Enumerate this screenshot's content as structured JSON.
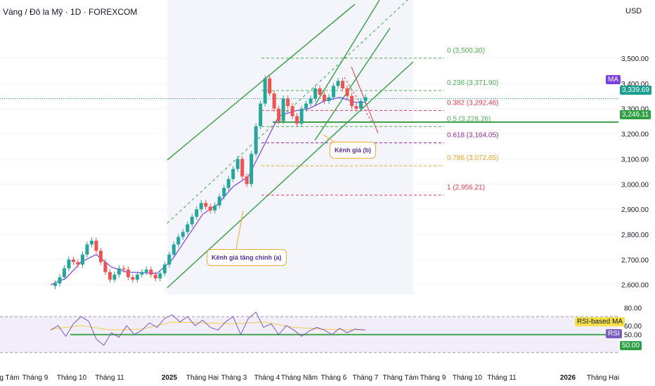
{
  "header": {
    "title": "Vàng / Đô la Mỹ · 1D · FOREXCOM",
    "currency": "USD"
  },
  "chart_data": {
    "type": "candlestick",
    "price_axis": {
      "ticks": [
        "3,500.00",
        "3,400.00",
        "3,300.00",
        "3,200.00",
        "3,100.00",
        "3,000.00",
        "2,900.00",
        "2,800.00",
        "2,700.00",
        "2,600.00"
      ],
      "ylim": [
        2560,
        3620
      ]
    },
    "current_price": "3,339.69",
    "ma_tag": "MA",
    "level_tag": "3,246.11",
    "fib_levels": [
      {
        "ratio": "0",
        "price": 3500.3,
        "label": "0 (3,500.30)",
        "color": "#4caf50"
      },
      {
        "ratio": "0.236",
        "price": 3371.9,
        "label": "0.236 (3,371.90)",
        "color": "#4caf50"
      },
      {
        "ratio": "0.382",
        "price": 3292.46,
        "label": "0.382 (3,292.46)",
        "color": "#e53950"
      },
      {
        "ratio": "0.5",
        "price": 3228.26,
        "label": "0.5 (3,228.26)",
        "color": "#4caf50"
      },
      {
        "ratio": "0.618",
        "price": 3164.05,
        "label": "0.618 (3,164.05)",
        "color": "#9c27b0"
      },
      {
        "ratio": "0.786",
        "price": 3072.65,
        "label": "0.786 (3,072.65)",
        "color": "#f5a623"
      },
      {
        "ratio": "1",
        "price": 2956.21,
        "label": "1 (2,956.21)",
        "color": "#e53950"
      }
    ],
    "annotations": [
      {
        "text": "Kênh giá (b)"
      },
      {
        "text": "Kênh giá tăng chính (a)"
      }
    ],
    "rsi": {
      "ticks": [
        "80.00",
        "60.00",
        "50.00"
      ],
      "ylim": [
        20,
        85
      ],
      "upper": 70,
      "lower": 30,
      "ma_label": "RSI-based MA",
      "rsi_label": "RSI",
      "level": 50,
      "level_label": "50.00"
    },
    "time_axis": [
      "Tháng Tám",
      "Tháng 9",
      "Tháng 10",
      "Tháng 11",
      "2025",
      "Tháng Hai",
      "Tháng 3",
      "Tháng 4",
      "Tháng Năm",
      "Tháng 6",
      "Tháng 7",
      "Tháng Tám",
      "Tháng 9",
      "Tháng 10",
      "Tháng 11",
      "2026",
      "Tháng Hai"
    ],
    "price_path": [
      [
        0,
        2595
      ],
      [
        3,
        2605
      ],
      [
        6,
        2630
      ],
      [
        9,
        2665
      ],
      [
        12,
        2700
      ],
      [
        15,
        2690
      ],
      [
        18,
        2680
      ],
      [
        21,
        2720
      ],
      [
        24,
        2760
      ],
      [
        27,
        2775
      ],
      [
        30,
        2735
      ],
      [
        33,
        2690
      ],
      [
        36,
        2650
      ],
      [
        39,
        2620
      ],
      [
        42,
        2640
      ],
      [
        45,
        2665
      ],
      [
        48,
        2660
      ],
      [
        51,
        2630
      ],
      [
        54,
        2620
      ],
      [
        57,
        2640
      ],
      [
        60,
        2650
      ],
      [
        63,
        2660
      ],
      [
        66,
        2640
      ],
      [
        69,
        2625
      ],
      [
        72,
        2645
      ],
      [
        75,
        2680
      ],
      [
        78,
        2720
      ],
      [
        81,
        2760
      ],
      [
        84,
        2790
      ],
      [
        87,
        2810
      ],
      [
        90,
        2840
      ],
      [
        93,
        2870
      ],
      [
        96,
        2900
      ],
      [
        99,
        2925
      ],
      [
        102,
        2910
      ],
      [
        105,
        2895
      ],
      [
        108,
        2915
      ],
      [
        111,
        2950
      ],
      [
        114,
        2985
      ],
      [
        117,
        3020
      ],
      [
        120,
        3060
      ],
      [
        123,
        3100
      ],
      [
        126,
        3030
      ],
      [
        129,
        3000
      ],
      [
        132,
        3120
      ],
      [
        135,
        3230
      ],
      [
        138,
        3320
      ],
      [
        141,
        3420
      ],
      [
        144,
        3360
      ],
      [
        147,
        3300
      ],
      [
        150,
        3250
      ],
      [
        153,
        3340
      ],
      [
        156,
        3310
      ],
      [
        159,
        3270
      ],
      [
        162,
        3240
      ],
      [
        165,
        3300
      ],
      [
        168,
        3320
      ],
      [
        171,
        3340
      ],
      [
        174,
        3380
      ],
      [
        177,
        3355
      ],
      [
        180,
        3330
      ],
      [
        183,
        3345
      ],
      [
        186,
        3390
      ],
      [
        189,
        3410
      ],
      [
        192,
        3380
      ],
      [
        195,
        3350
      ],
      [
        198,
        3310
      ],
      [
        201,
        3300
      ],
      [
        204,
        3330
      ],
      [
        207,
        3345
      ]
    ],
    "ma_path": [
      [
        0,
        2600
      ],
      [
        10,
        2625
      ],
      [
        20,
        2690
      ],
      [
        30,
        2720
      ],
      [
        40,
        2670
      ],
      [
        50,
        2650
      ],
      [
        60,
        2648
      ],
      [
        70,
        2645
      ],
      [
        80,
        2700
      ],
      [
        90,
        2790
      ],
      [
        100,
        2880
      ],
      [
        110,
        2920
      ],
      [
        120,
        2990
      ],
      [
        130,
        3030
      ],
      [
        140,
        3150
      ],
      [
        150,
        3270
      ],
      [
        160,
        3290
      ],
      [
        170,
        3300
      ],
      [
        180,
        3330
      ],
      [
        190,
        3345
      ],
      [
        200,
        3325
      ],
      [
        207,
        3325
      ]
    ],
    "rsi_path": [
      [
        0,
        55
      ],
      [
        5,
        60
      ],
      [
        10,
        48
      ],
      [
        15,
        62
      ],
      [
        20,
        70
      ],
      [
        25,
        65
      ],
      [
        30,
        45
      ],
      [
        35,
        38
      ],
      [
        40,
        52
      ],
      [
        45,
        47
      ],
      [
        50,
        60
      ],
      [
        55,
        50
      ],
      [
        60,
        55
      ],
      [
        65,
        63
      ],
      [
        70,
        58
      ],
      [
        75,
        68
      ],
      [
        80,
        72
      ],
      [
        85,
        64
      ],
      [
        90,
        70
      ],
      [
        95,
        60
      ],
      [
        100,
        66
      ],
      [
        105,
        58
      ],
      [
        110,
        55
      ],
      [
        115,
        64
      ],
      [
        120,
        70
      ],
      [
        125,
        50
      ],
      [
        130,
        68
      ],
      [
        135,
        75
      ],
      [
        140,
        58
      ],
      [
        145,
        62
      ],
      [
        150,
        50
      ],
      [
        155,
        60
      ],
      [
        160,
        55
      ],
      [
        165,
        48
      ],
      [
        170,
        54
      ],
      [
        175,
        58
      ],
      [
        180,
        55
      ],
      [
        185,
        50
      ],
      [
        190,
        57
      ],
      [
        195,
        52
      ],
      [
        200,
        56
      ],
      [
        207,
        55
      ]
    ],
    "rsi_ma_path": [
      [
        0,
        56
      ],
      [
        20,
        60
      ],
      [
        40,
        55
      ],
      [
        60,
        56
      ],
      [
        80,
        64
      ],
      [
        100,
        63
      ],
      [
        120,
        62
      ],
      [
        140,
        64
      ],
      [
        160,
        58
      ],
      [
        180,
        56
      ],
      [
        207,
        55
      ]
    ]
  }
}
